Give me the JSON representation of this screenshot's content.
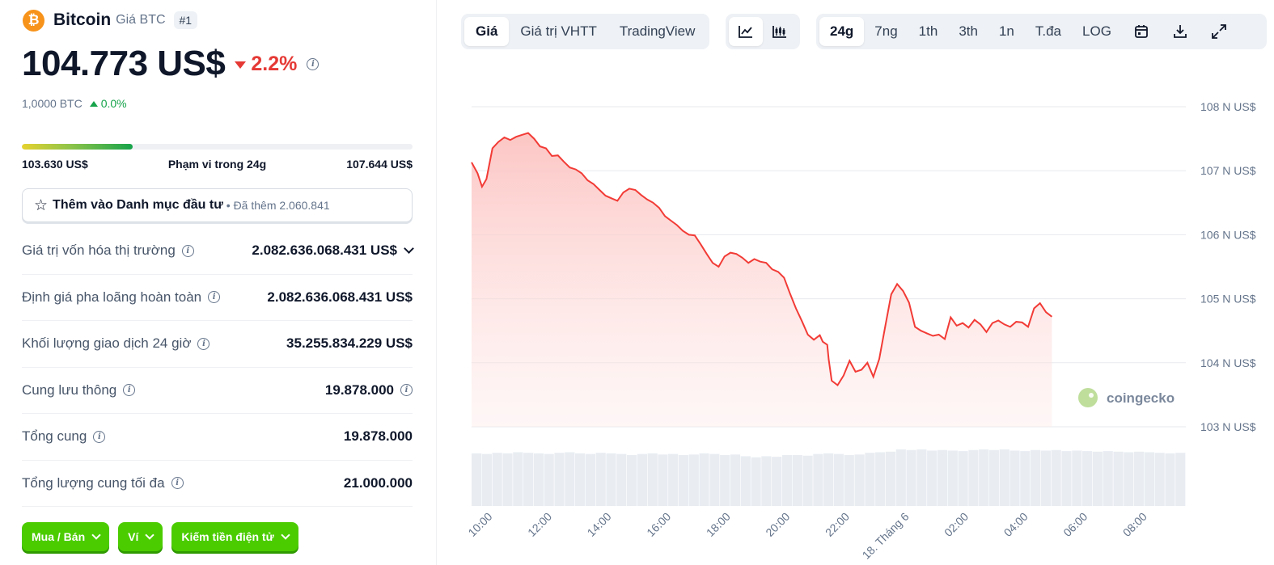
{
  "coin": {
    "logo_symbol": "₿",
    "name": "Bitcoin",
    "subtitle": "Giá BTC",
    "rank": "#1",
    "price": "104.773 US$",
    "change_24h": "2.2%",
    "btc_value": "1,0000 BTC",
    "btc_change": "0.0%"
  },
  "range": {
    "low": "103.630 US$",
    "label": "Phạm vi trong 24g",
    "high": "107.644 US$",
    "fill_fraction": 0.284
  },
  "portfolio": {
    "label": "Thêm vào Danh mục đầu tư",
    "added": "• Đã thêm 2.060.841"
  },
  "stats": [
    {
      "label": "Giá trị vốn hóa thị trường",
      "value": "2.082.636.068.431 US$",
      "expandable": true,
      "value_info": false
    },
    {
      "label": "Định giá pha loãng hoàn toàn",
      "value": "2.082.636.068.431 US$",
      "expandable": false,
      "value_info": false
    },
    {
      "label": "Khối lượng giao dịch 24 giờ",
      "value": "35.255.834.229 US$",
      "expandable": false,
      "value_info": false
    },
    {
      "label": "Cung lưu thông",
      "value": "19.878.000",
      "expandable": false,
      "value_info": true
    },
    {
      "label": "Tổng cung",
      "value": "19.878.000",
      "expandable": false,
      "value_info": false
    },
    {
      "label": "Tổng lượng cung tối đa",
      "value": "21.000.000",
      "expandable": false,
      "value_info": false
    }
  ],
  "actions": [
    "Mua / Bán",
    "Ví",
    "Kiếm tiền điện tử"
  ],
  "toolbar": {
    "view_tabs": [
      "Giá",
      "Giá trị VHTT",
      "TradingView"
    ],
    "active_view": "Giá",
    "chart_types": [
      "line-chart-icon",
      "candlestick-icon"
    ],
    "ranges": [
      "24g",
      "7ng",
      "1th",
      "3th",
      "1n",
      "T.đa",
      "LOG"
    ],
    "active_range": "24g",
    "tools": [
      "calendar-icon",
      "download-icon",
      "fullscreen-icon"
    ]
  },
  "watermark": "coingecko",
  "colors": {
    "up": "#16a34a",
    "down": "#e53935",
    "line": "#f23b36",
    "area": "#fdd5d4",
    "button": "#4bcc00",
    "logo": "#f7931a"
  },
  "chart_data": {
    "type": "area",
    "title": "",
    "xlabel": "",
    "ylabel": "",
    "ylim": [
      103000,
      108000
    ],
    "y_ticks": [
      {
        "value": 108000,
        "label": "108 N US$"
      },
      {
        "value": 107000,
        "label": "107 N US$"
      },
      {
        "value": 106000,
        "label": "106 N US$"
      },
      {
        "value": 105000,
        "label": "105 N US$"
      },
      {
        "value": 104000,
        "label": "104 N US$"
      },
      {
        "value": 103000,
        "label": "103 N US$"
      }
    ],
    "x_ticks": [
      {
        "t": 0.5,
        "label": "10:00"
      },
      {
        "t": 2.5,
        "label": "12:00"
      },
      {
        "t": 4.5,
        "label": "14:00"
      },
      {
        "t": 6.5,
        "label": "16:00"
      },
      {
        "t": 8.5,
        "label": "18:00"
      },
      {
        "t": 10.5,
        "label": "20:00"
      },
      {
        "t": 12.5,
        "label": "22:00"
      },
      {
        "t": 14.5,
        "label": "18. Tháng 6"
      },
      {
        "t": 16.5,
        "label": "02:00"
      },
      {
        "t": 18.5,
        "label": "04:00"
      },
      {
        "t": 20.5,
        "label": "06:00"
      },
      {
        "t": 22.5,
        "label": "08:00"
      }
    ],
    "series": [
      {
        "name": "Giá",
        "points": [
          [
            0.0,
            107130
          ],
          [
            0.2,
            106960
          ],
          [
            0.35,
            106750
          ],
          [
            0.5,
            106870
          ],
          [
            0.7,
            107350
          ],
          [
            0.9,
            107450
          ],
          [
            1.1,
            107520
          ],
          [
            1.3,
            107480
          ],
          [
            1.5,
            107530
          ],
          [
            1.7,
            107560
          ],
          [
            1.9,
            107590
          ],
          [
            2.1,
            107500
          ],
          [
            2.3,
            107380
          ],
          [
            2.5,
            107350
          ],
          [
            2.7,
            107230
          ],
          [
            2.9,
            107240
          ],
          [
            3.1,
            107140
          ],
          [
            3.3,
            107050
          ],
          [
            3.5,
            107020
          ],
          [
            3.7,
            106960
          ],
          [
            3.9,
            106850
          ],
          [
            4.1,
            106790
          ],
          [
            4.3,
            106700
          ],
          [
            4.5,
            106610
          ],
          [
            4.7,
            106570
          ],
          [
            4.9,
            106530
          ],
          [
            5.1,
            106660
          ],
          [
            5.3,
            106720
          ],
          [
            5.5,
            106700
          ],
          [
            5.7,
            106620
          ],
          [
            5.9,
            106550
          ],
          [
            6.1,
            106500
          ],
          [
            6.3,
            106420
          ],
          [
            6.5,
            106290
          ],
          [
            6.7,
            106220
          ],
          [
            6.9,
            106150
          ],
          [
            7.1,
            106060
          ],
          [
            7.3,
            106000
          ],
          [
            7.5,
            105990
          ],
          [
            7.7,
            105850
          ],
          [
            7.9,
            105700
          ],
          [
            8.1,
            105560
          ],
          [
            8.3,
            105500
          ],
          [
            8.5,
            105660
          ],
          [
            8.7,
            105720
          ],
          [
            8.9,
            105700
          ],
          [
            9.1,
            105640
          ],
          [
            9.3,
            105560
          ],
          [
            9.5,
            105620
          ],
          [
            9.7,
            105580
          ],
          [
            9.9,
            105560
          ],
          [
            10.1,
            105460
          ],
          [
            10.3,
            105420
          ],
          [
            10.5,
            105330
          ],
          [
            10.7,
            105080
          ],
          [
            10.9,
            104850
          ],
          [
            11.1,
            104650
          ],
          [
            11.3,
            104440
          ],
          [
            11.5,
            104360
          ],
          [
            11.7,
            104430
          ],
          [
            11.8,
            104330
          ],
          [
            11.95,
            104280
          ],
          [
            12.0,
            104050
          ],
          [
            12.1,
            103720
          ],
          [
            12.3,
            103650
          ],
          [
            12.5,
            103800
          ],
          [
            12.7,
            104030
          ],
          [
            12.9,
            103860
          ],
          [
            13.1,
            103890
          ],
          [
            13.3,
            104000
          ],
          [
            13.5,
            103780
          ],
          [
            13.7,
            104060
          ],
          [
            13.9,
            104570
          ],
          [
            14.1,
            105070
          ],
          [
            14.3,
            105230
          ],
          [
            14.5,
            105120
          ],
          [
            14.7,
            104940
          ],
          [
            14.9,
            104560
          ],
          [
            15.1,
            104500
          ],
          [
            15.3,
            104460
          ],
          [
            15.5,
            104420
          ],
          [
            15.7,
            104440
          ],
          [
            15.9,
            104370
          ],
          [
            16.1,
            104710
          ],
          [
            16.3,
            104580
          ],
          [
            16.5,
            104620
          ],
          [
            16.7,
            104550
          ],
          [
            16.9,
            104670
          ],
          [
            17.1,
            104600
          ],
          [
            17.3,
            104480
          ],
          [
            17.5,
            104620
          ],
          [
            17.7,
            104660
          ],
          [
            17.9,
            104600
          ],
          [
            18.1,
            104560
          ],
          [
            18.3,
            104640
          ],
          [
            18.5,
            104630
          ],
          [
            18.7,
            104560
          ],
          [
            18.9,
            104850
          ],
          [
            19.1,
            104930
          ],
          [
            19.3,
            104790
          ],
          [
            19.5,
            104720
          ]
        ]
      }
    ],
    "volume": {
      "values": [
        0.93,
        0.92,
        0.94,
        0.93,
        0.95,
        0.94,
        0.93,
        0.92,
        0.94,
        0.95,
        0.93,
        0.92,
        0.94,
        0.93,
        0.92,
        0.9,
        0.92,
        0.93,
        0.91,
        0.92,
        0.9,
        0.91,
        0.93,
        0.92,
        0.9,
        0.91,
        0.88,
        0.86,
        0.88,
        0.87,
        0.9,
        0.9,
        0.89,
        0.92,
        0.93,
        0.92,
        0.9,
        0.91,
        0.94,
        0.95,
        0.96,
        1.0,
        0.99,
        1.0,
        0.98,
        0.99,
        0.98,
        0.97,
        0.99,
        1.0,
        0.99,
        1.0,
        0.98,
        0.97,
        0.99,
        0.98,
        0.99,
        0.97,
        0.98,
        0.97,
        0.96,
        0.97,
        0.96,
        0.95,
        0.96,
        0.95,
        0.94,
        0.93,
        0.94
      ]
    }
  }
}
